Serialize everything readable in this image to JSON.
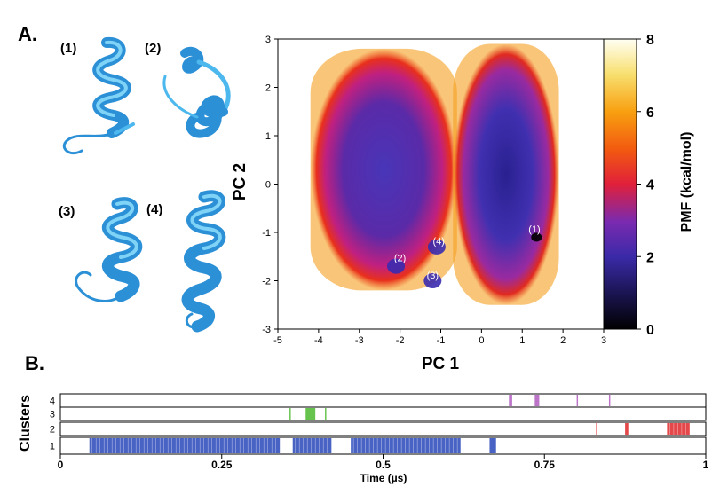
{
  "panel_a_label": "A.",
  "panel_b_label": "B.",
  "structure_labels": [
    "(1)",
    "(2)",
    "(3)",
    "(4)"
  ],
  "colors": {
    "helix": "#3aa8e8",
    "helix_light": "#7fd3f7",
    "cluster_1": "#2848b8",
    "cluster_2": "#e0282a",
    "cluster_3": "#4bb82e",
    "cluster_4": "#b05cc0"
  },
  "chart_data": [
    {
      "type": "heatmap",
      "xlabel": "PC 1",
      "ylabel": "PC 2",
      "xlim": [
        -5,
        3
      ],
      "ylim": [
        -3,
        3
      ],
      "xticks": [
        -5,
        -4,
        -3,
        -2,
        -1,
        0,
        1,
        2,
        3
      ],
      "yticks": [
        -3,
        -2,
        -1,
        0,
        1,
        2,
        3
      ],
      "colorbar": {
        "label": "PMF (kcal/mol)",
        "range": [
          0,
          8
        ],
        "ticks": [
          0,
          2,
          4,
          6,
          8
        ]
      },
      "annotations": [
        {
          "text": "(1)",
          "x": 1.3,
          "y": -1.0
        },
        {
          "text": "(2)",
          "x": -2.0,
          "y": -1.6
        },
        {
          "text": "(3)",
          "x": -1.2,
          "y": -1.95
        },
        {
          "text": "(4)",
          "x": -1.05,
          "y": -1.25
        }
      ],
      "regions": [
        {
          "x": [
            -4.2,
            -0.6
          ],
          "y": [
            -2.2,
            2.8
          ]
        },
        {
          "x": [
            -0.7,
            1.9
          ],
          "y": [
            -2.5,
            2.9
          ]
        }
      ],
      "minima": [
        {
          "label": "(1)",
          "x": 1.35,
          "y": -1.1,
          "pmf": 0
        },
        {
          "label": "(2)",
          "x": -2.1,
          "y": -1.7,
          "pmf": 1.8
        },
        {
          "label": "(3)",
          "x": -1.2,
          "y": -2.0,
          "pmf": 2.2
        },
        {
          "label": "(4)",
          "x": -1.1,
          "y": -1.3,
          "pmf": 2.0
        }
      ]
    },
    {
      "type": "timeline",
      "xlabel": "Time (µs)",
      "ylabel": "Clusters",
      "xlim": [
        0,
        1
      ],
      "xticks": [
        "0",
        "0.25",
        "0.5",
        "0.75",
        "1"
      ],
      "tracks": [
        {
          "name": "1",
          "intervals": [
            [
              0.045,
              0.34
            ],
            [
              0.36,
              0.42
            ],
            [
              0.45,
              0.62
            ],
            [
              0.665,
              0.675
            ]
          ]
        },
        {
          "name": "2",
          "intervals": [
            [
              0.83,
              0.832
            ],
            [
              0.875,
              0.88
            ],
            [
              0.94,
              0.975
            ]
          ]
        },
        {
          "name": "3",
          "intervals": [
            [
              0.355,
              0.357
            ],
            [
              0.38,
              0.395
            ],
            [
              0.41,
              0.412
            ]
          ]
        },
        {
          "name": "4",
          "intervals": [
            [
              0.695,
              0.7
            ],
            [
              0.735,
              0.742
            ],
            [
              0.8,
              0.802
            ],
            [
              0.85,
              0.852
            ]
          ]
        }
      ]
    }
  ]
}
